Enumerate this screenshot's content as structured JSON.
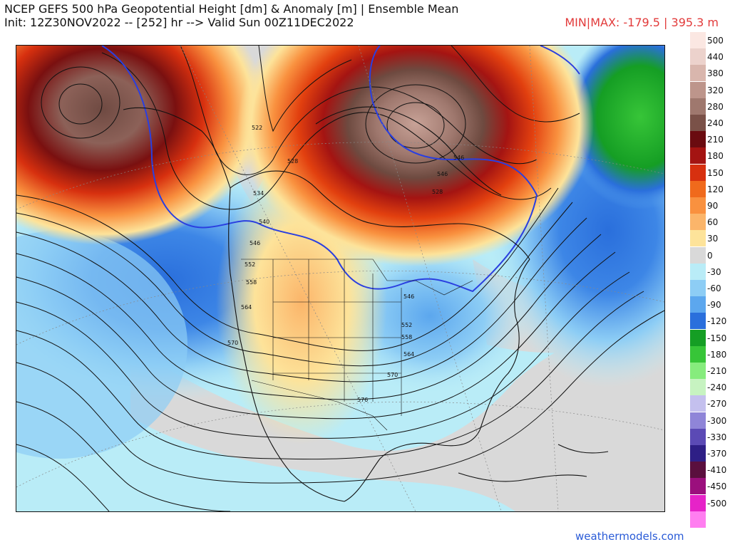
{
  "header": {
    "title_line1": "NCEP GEFS 500 hPa Geopotential Height [dm] & Anomaly [m] | Ensemble Mean",
    "title_line2": "Init: 12Z30NOV2022 -- [252] hr --> Valid Sun 00Z11DEC2022",
    "minmax": "MIN|MAX: -179.5 | 395.3 m"
  },
  "colorbar": {
    "levels": [
      {
        "label": "500",
        "color": "#fbe7e2"
      },
      {
        "label": "440",
        "color": "#ecd2cc"
      },
      {
        "label": "380",
        "color": "#d9b6ad"
      },
      {
        "label": "320",
        "color": "#bd958b"
      },
      {
        "label": "280",
        "color": "#9f786e"
      },
      {
        "label": "240",
        "color": "#7a5148"
      },
      {
        "label": "210",
        "color": "#6a0b10"
      },
      {
        "label": "180",
        "color": "#a41412"
      },
      {
        "label": "150",
        "color": "#d7300f"
      },
      {
        "label": "120",
        "color": "#f06a1c"
      },
      {
        "label": "90",
        "color": "#f9913f"
      },
      {
        "label": "60",
        "color": "#fbb56a"
      },
      {
        "label": "30",
        "color": "#fde39a"
      },
      {
        "label": "0",
        "color": "#d9d9d9"
      },
      {
        "label": "-30",
        "color": "#b9ecf7"
      },
      {
        "label": "-60",
        "color": "#8dcdf5"
      },
      {
        "label": "-90",
        "color": "#5ca7ee"
      },
      {
        "label": "-120",
        "color": "#2a6fdc"
      },
      {
        "label": "-150",
        "color": "#159e24"
      },
      {
        "label": "-180",
        "color": "#37c538"
      },
      {
        "label": "-210",
        "color": "#86ec7d"
      },
      {
        "label": "-240",
        "color": "#c7f3c1"
      },
      {
        "label": "-270",
        "color": "#c4c0ee"
      },
      {
        "label": "-300",
        "color": "#8f85d8"
      },
      {
        "label": "-330",
        "color": "#5b4ab5"
      },
      {
        "label": "-370",
        "color": "#2e1f86"
      },
      {
        "label": "-410",
        "color": "#5a0f3e"
      },
      {
        "label": "-450",
        "color": "#9b0f7d"
      },
      {
        "label": "-500",
        "color": "#e623c8"
      },
      {
        "label": "",
        "color": "#ff7ef0"
      }
    ]
  },
  "map": {
    "contour_labels": [
      "522",
      "528",
      "534",
      "540",
      "546",
      "552",
      "558",
      "564",
      "570",
      "576",
      "570",
      "546",
      "546",
      "528",
      "558",
      "552",
      "546",
      "564"
    ]
  },
  "footer": {
    "credit": "weathermodels.com"
  }
}
